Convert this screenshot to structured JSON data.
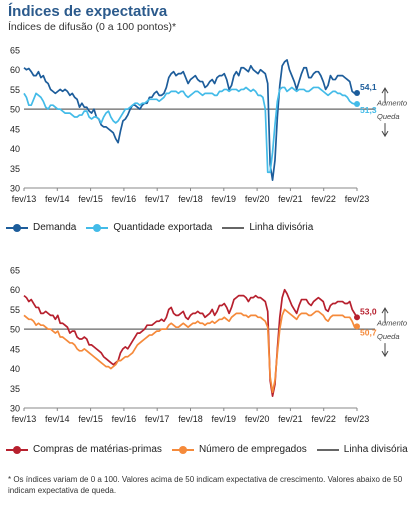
{
  "title": "Índices de expectativa",
  "subtitle": "Índices de difusão (0 a 100 pontos)*",
  "footnote": "* Os índices variam de 0 a 100. Valores acima de 50 indicam expectativa de crescimento. Valores abaixo de 50 indicam expectativa de queda.",
  "chart_data": [
    {
      "type": "line",
      "xlabel": "",
      "ylabel": "",
      "ylim": [
        30,
        65
      ],
      "yticks": [
        30,
        35,
        40,
        45,
        50,
        55,
        60,
        65
      ],
      "x_ticks": [
        "fev/13",
        "fev/14",
        "fev/15",
        "fev/16",
        "fev/17",
        "fev/18",
        "fev/19",
        "fev/20",
        "fev/21",
        "fev/22",
        "fev/23"
      ],
      "x_start": "fev/13",
      "x_end": "fev/23",
      "grid": false,
      "legend_position": "bottom",
      "reference_line": {
        "name": "Linha divisória",
        "value": 50,
        "color": "#666666"
      },
      "annotation_up": "Aumento",
      "annotation_down": "Queda",
      "series": [
        {
          "name": "Demanda",
          "color": "#1d5d9b",
          "last_label": "54,1",
          "values": [
            60.5,
            60,
            60.3,
            59.5,
            58.5,
            58.5,
            59.5,
            58,
            58.5,
            57,
            56.5,
            55,
            54.5,
            54,
            54.5,
            55,
            54.5,
            55,
            54.5,
            53.5,
            54,
            53,
            52.5,
            50.5,
            51.5,
            50.5,
            50.5,
            49.5,
            49,
            50,
            48,
            47.5,
            46,
            45.5,
            45.5,
            45,
            44.5,
            44,
            42.5,
            41.5,
            44.5,
            47,
            47.5,
            48.5,
            50,
            51,
            51,
            50.5,
            50,
            51,
            51.5,
            51.5,
            53,
            53,
            54,
            54.5,
            53.5,
            53.5,
            54,
            55.5,
            58,
            59,
            59.5,
            58.5,
            59,
            59,
            59.5,
            58,
            56.5,
            57.5,
            58,
            58.5,
            57.5,
            57,
            57,
            55.5,
            56,
            57,
            57.5,
            56.5,
            58,
            58.5,
            58.5,
            59,
            57.5,
            55,
            56,
            58.5,
            59.5,
            58.5,
            60.5,
            60.5,
            60,
            59.5,
            61,
            60,
            59.5,
            59,
            60,
            59.5,
            59,
            56.5,
            36,
            32,
            37,
            48,
            56,
            61,
            62,
            62.5,
            60,
            58.5,
            57,
            55,
            57,
            59,
            60.5,
            60.5,
            58,
            58,
            59,
            59.5,
            59.5,
            58.5,
            57,
            55,
            56,
            58.5,
            57.5,
            57.5,
            58.5,
            58.5,
            58.5,
            58,
            57.5,
            57,
            54.5,
            54,
            54.1
          ]
        },
        {
          "name": "Quantidade exportada",
          "color": "#43bbe8",
          "last_label": "51,3",
          "values": [
            54,
            53,
            51,
            51,
            52.5,
            54,
            53.5,
            53,
            52,
            50.5,
            50,
            51,
            51,
            50.5,
            50,
            50,
            49.5,
            49,
            49,
            49,
            48.5,
            48,
            48,
            48.5,
            48.5,
            49.5,
            49.5,
            48,
            47.5,
            48,
            48,
            47.5,
            46.5,
            48,
            49,
            49.5,
            48,
            47,
            46.5,
            47,
            48,
            49,
            50,
            50,
            50.5,
            51,
            51.5,
            51.5,
            51,
            51.5,
            51.5,
            52,
            52.5,
            52.5,
            52.5,
            52.5,
            52,
            52.5,
            53,
            54,
            54,
            54.5,
            54.5,
            54.5,
            54,
            54.5,
            54.5,
            53.5,
            53,
            53.5,
            54,
            54.5,
            54.5,
            54,
            53.5,
            54,
            54,
            54,
            54,
            53.5,
            53.5,
            54.5,
            54.5,
            55,
            55,
            54.5,
            55,
            55,
            55,
            54.5,
            55,
            55,
            55.5,
            55,
            54.5,
            55,
            54.5,
            53.5,
            53.5,
            53,
            50,
            34,
            34,
            39,
            46,
            52,
            55,
            55.5,
            55.5,
            54.5,
            55,
            55.5,
            55,
            54.5,
            55,
            55,
            55,
            54.5,
            54.5,
            55,
            55.5,
            55.5,
            55.5,
            55,
            54.5,
            54,
            53.5,
            54,
            54.5,
            54.5,
            54,
            54,
            53.5,
            53.5,
            53,
            52,
            51.5,
            51.3
          ]
        }
      ]
    },
    {
      "type": "line",
      "xlabel": "",
      "ylabel": "",
      "ylim": [
        30,
        65
      ],
      "yticks": [
        30,
        35,
        40,
        45,
        50,
        55,
        60,
        65
      ],
      "x_ticks": [
        "fev/13",
        "fev/14",
        "fev/15",
        "fev/16",
        "fev/17",
        "fev/18",
        "fev/19",
        "fev/20",
        "fev/21",
        "fev/22",
        "fev/23"
      ],
      "x_start": "fev/13",
      "x_end": "fev/23",
      "grid": false,
      "legend_position": "bottom",
      "reference_line": {
        "name": "Linha divisória",
        "value": 50,
        "color": "#666666"
      },
      "annotation_up": "Aumento",
      "annotation_down": "Queda",
      "series": [
        {
          "name": "Compras de matérias-primas",
          "color": "#b7202e",
          "last_label": "53,0",
          "values": [
            58.5,
            58,
            57,
            57.5,
            56.5,
            55.5,
            55.5,
            54,
            54,
            54.5,
            54,
            53.5,
            53.5,
            52.5,
            53.5,
            51.5,
            51.5,
            51,
            50.5,
            49,
            49.5,
            49.5,
            48,
            47.5,
            47.5,
            48,
            47.5,
            46,
            46,
            45.5,
            45,
            44.5,
            44,
            43,
            42.5,
            42,
            41.5,
            41,
            41.5,
            42,
            44,
            45,
            45.5,
            45,
            46,
            47,
            48,
            49,
            49,
            49.5,
            50,
            51,
            51,
            51,
            51.5,
            52,
            52,
            52.5,
            52,
            53,
            55,
            55.5,
            54,
            53.5,
            53.5,
            54,
            54.5,
            53,
            52.5,
            53.5,
            54,
            54,
            54.5,
            54,
            54,
            53,
            53.5,
            54,
            55,
            53.5,
            54.5,
            56,
            56,
            56.5,
            55.5,
            54,
            55.5,
            57.5,
            58,
            58.5,
            58.5,
            58.5,
            58,
            57,
            58,
            58,
            58.5,
            58,
            58,
            57.5,
            57,
            54.5,
            37,
            33,
            36,
            45,
            53,
            58,
            60,
            59,
            57.5,
            56,
            55,
            54,
            56,
            57.5,
            57.5,
            57.5,
            56.5,
            56,
            57,
            57.5,
            58,
            57.5,
            57,
            55,
            54.5,
            56,
            56.5,
            56.5,
            57,
            57,
            57,
            56.5,
            56.5,
            57,
            55,
            54,
            53
          ]
        },
        {
          "name": "Número de empregados",
          "color": "#f58a3b",
          "last_label": "50,7",
          "values": [
            53.5,
            53,
            52.5,
            52.5,
            52,
            51,
            51.5,
            51,
            51,
            50.5,
            50,
            50,
            49.5,
            49,
            49.5,
            48,
            48,
            47.5,
            47,
            46.5,
            46.5,
            46,
            45,
            44.5,
            44.5,
            45,
            44.5,
            44,
            43.5,
            43,
            42.5,
            42,
            41.5,
            41,
            40.5,
            40.5,
            40,
            40.5,
            41,
            42,
            42,
            42.5,
            43,
            43,
            43.5,
            44,
            45,
            46,
            46.5,
            47,
            47.5,
            48,
            48.5,
            48.5,
            49,
            49.5,
            49.5,
            50,
            50,
            50,
            51,
            51.5,
            51,
            50.5,
            50.5,
            51,
            51.5,
            51,
            50.5,
            51,
            51.5,
            51.5,
            52,
            51.5,
            51.5,
            51,
            51.5,
            51.5,
            52,
            51.5,
            52,
            52.5,
            52.5,
            53,
            52.5,
            52,
            53,
            53.5,
            54,
            54,
            54,
            53.5,
            53.5,
            53,
            53.5,
            53.5,
            53.5,
            53,
            53,
            52.5,
            52,
            50.5,
            38,
            34,
            37,
            44,
            50,
            53.5,
            55,
            54.5,
            54,
            53.5,
            53,
            52.5,
            53.5,
            54,
            54,
            54,
            53.5,
            53.5,
            54,
            54.5,
            54.5,
            54,
            53.5,
            52.5,
            52,
            53,
            53.5,
            53.5,
            53.5,
            53.5,
            53.5,
            53,
            53,
            53,
            52,
            50.5,
            50.7
          ]
        }
      ]
    }
  ]
}
